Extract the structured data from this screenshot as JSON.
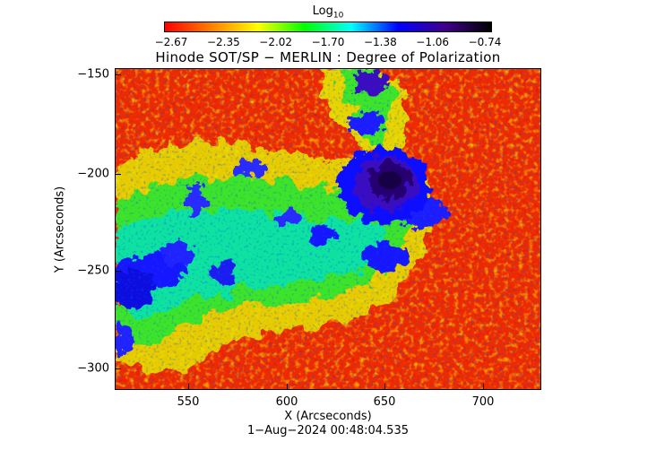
{
  "colorbar": {
    "title_main": "Log",
    "title_sub": "10",
    "ticks": [
      "−2.67",
      "−2.35",
      "−2.02",
      "−1.70",
      "−1.38",
      "−1.06",
      "−0.74"
    ],
    "colors": [
      "#ff0000",
      "#ff8000",
      "#ffff00",
      "#00ff00",
      "#00ffff",
      "#0000ff",
      "#40008c",
      "#000000"
    ]
  },
  "plot": {
    "title": "Hinode SOT/SP − MERLIN : Degree of Polarization",
    "xlabel": "X (Arcseconds)",
    "ylabel": "Y (Arcseconds)",
    "x_ticks": [
      "550",
      "600",
      "650",
      "700"
    ],
    "y_ticks": [
      "−150",
      "−200",
      "−250",
      "−300"
    ],
    "timestamp": "1−Aug−2024 00:48:04.535"
  }
}
